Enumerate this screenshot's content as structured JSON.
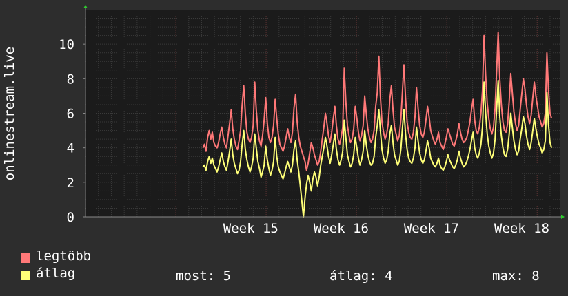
{
  "chart_data": {
    "type": "line",
    "ylabel": "onlinestream.live",
    "ylim": [
      0,
      12
    ],
    "y_ticks": [
      "0",
      "2",
      "4",
      "6",
      "8",
      "10"
    ],
    "x_range_weeks": [
      13.0,
      18.25
    ],
    "x_ticks": [
      {
        "label": "Week 15",
        "week": 14.83
      },
      {
        "label": "Week 16",
        "week": 15.83
      },
      {
        "label": "Week 17",
        "week": 16.83
      },
      {
        "label": "Week 18",
        "week": 17.83
      }
    ],
    "grid": true,
    "series": [
      {
        "name": "legtöbb",
        "color": "#ff7878",
        "x_start_week": 14.3,
        "x_end_week": 18.16,
        "values": [
          4.0,
          4.2,
          3.8,
          4.6,
          5.0,
          4.5,
          4.9,
          4.3,
          4.1,
          4.0,
          4.3,
          4.8,
          5.2,
          4.6,
          4.2,
          4.0,
          4.7,
          5.4,
          6.2,
          5.1,
          4.5,
          4.1,
          3.9,
          4.4,
          5.0,
          6.5,
          7.6,
          6.0,
          4.9,
          4.5,
          4.3,
          4.6,
          5.3,
          7.8,
          6.2,
          5.0,
          4.4,
          4.1,
          4.7,
          5.6,
          6.9,
          5.4,
          4.6,
          4.3,
          4.6,
          5.3,
          6.8,
          5.7,
          4.8,
          4.2,
          4.0,
          3.8,
          4.1,
          4.6,
          5.1,
          4.6,
          4.3,
          4.9,
          6.3,
          7.1,
          5.5,
          4.6,
          4.1,
          3.8,
          3.5,
          3.2,
          2.7,
          3.1,
          3.7,
          4.3,
          4.0,
          3.6,
          3.3,
          3.0,
          3.2,
          3.8,
          4.5,
          5.2,
          6.0,
          5.4,
          4.7,
          4.3,
          4.9,
          5.7,
          6.4,
          5.3,
          4.5,
          4.2,
          4.6,
          5.2,
          8.6,
          6.7,
          5.3,
          4.7,
          4.3,
          4.5,
          5.1,
          6.4,
          5.7,
          4.9,
          4.4,
          4.7,
          5.3,
          7.0,
          6.0,
          5.1,
          4.6,
          4.3,
          4.5,
          5.0,
          6.4,
          7.2,
          9.3,
          7.0,
          5.5,
          4.9,
          4.5,
          4.8,
          5.4,
          6.8,
          7.6,
          6.2,
          5.2,
          4.8,
          4.4,
          4.7,
          5.6,
          7.2,
          8.8,
          6.9,
          5.5,
          4.9,
          4.6,
          4.5,
          4.9,
          5.8,
          7.5,
          6.3,
          5.3,
          4.8,
          4.6,
          4.9,
          5.6,
          6.4,
          5.8,
          5.0,
          4.7,
          4.4,
          4.2,
          4.5,
          4.9,
          4.3,
          4.1,
          3.9,
          4.2,
          4.6,
          5.1,
          4.8,
          4.5,
          4.2,
          4.1,
          4.4,
          4.8,
          5.4,
          4.9,
          4.5,
          4.3,
          4.4,
          4.6,
          5.0,
          5.5,
          6.2,
          6.8,
          5.6,
          5.0,
          4.8,
          5.2,
          6.0,
          7.3,
          10.5,
          8.2,
          6.6,
          5.7,
          5.1,
          4.8,
          5.2,
          6.3,
          8.5,
          10.7,
          8.0,
          6.5,
          5.5,
          5.0,
          4.9,
          5.4,
          6.7,
          8.3,
          7.2,
          6.1,
          5.4,
          5.0,
          5.3,
          6.2,
          7.1,
          8.0,
          7.4,
          6.5,
          5.8,
          5.4,
          5.9,
          6.9,
          7.8,
          7.0,
          6.4,
          5.8,
          5.5,
          5.2,
          5.4,
          6.0,
          9.5,
          7.4,
          6.0,
          5.7
        ]
      },
      {
        "name": "átlag",
        "color": "#ffff78",
        "x_start_week": 14.3,
        "x_end_week": 18.16,
        "values": [
          2.9,
          3.0,
          2.7,
          3.2,
          3.5,
          3.1,
          3.4,
          3.0,
          2.8,
          2.6,
          2.9,
          3.3,
          3.7,
          3.2,
          2.9,
          2.7,
          3.2,
          3.8,
          4.5,
          3.6,
          3.1,
          2.8,
          2.5,
          2.7,
          3.2,
          4.2,
          5.0,
          3.9,
          3.3,
          2.9,
          2.6,
          2.9,
          3.4,
          4.8,
          4.0,
          3.2,
          2.8,
          2.3,
          2.6,
          3.0,
          4.1,
          3.3,
          2.8,
          2.4,
          2.7,
          3.2,
          4.6,
          3.5,
          2.9,
          2.6,
          2.4,
          2.2,
          2.5,
          2.9,
          3.2,
          2.9,
          2.6,
          3.0,
          3.9,
          4.4,
          3.3,
          2.6,
          1.8,
          0.9,
          0.0,
          1.1,
          1.9,
          2.4,
          2.0,
          1.5,
          2.2,
          2.6,
          2.3,
          1.8,
          2.3,
          3.0,
          3.5,
          4.0,
          4.6,
          4.1,
          3.5,
          3.1,
          3.6,
          4.2,
          4.8,
          3.9,
          3.3,
          3.0,
          3.3,
          3.8,
          5.6,
          4.6,
          3.6,
          3.2,
          2.9,
          3.1,
          3.6,
          4.6,
          4.0,
          3.4,
          3.0,
          3.3,
          3.8,
          5.0,
          4.2,
          3.6,
          3.2,
          3.0,
          3.1,
          3.5,
          4.6,
          5.3,
          6.2,
          5.0,
          3.9,
          3.4,
          3.1,
          3.3,
          3.8,
          4.8,
          5.3,
          4.3,
          3.6,
          3.3,
          3.0,
          3.2,
          3.9,
          5.1,
          6.2,
          4.8,
          3.9,
          3.4,
          3.2,
          3.1,
          3.4,
          4.0,
          5.2,
          4.4,
          3.7,
          3.3,
          3.1,
          3.3,
          3.8,
          4.4,
          4.0,
          3.4,
          3.2,
          3.0,
          2.9,
          3.1,
          3.4,
          3.0,
          2.8,
          2.7,
          2.9,
          3.2,
          3.6,
          3.3,
          3.1,
          2.9,
          2.8,
          3.0,
          3.3,
          3.8,
          3.4,
          3.1,
          2.9,
          3.0,
          3.2,
          3.5,
          3.9,
          4.4,
          4.9,
          4.0,
          3.6,
          3.4,
          3.7,
          4.2,
          5.2,
          7.8,
          6.0,
          4.8,
          4.1,
          3.7,
          3.4,
          3.7,
          4.5,
          6.3,
          7.9,
          5.8,
          4.7,
          4.0,
          3.6,
          3.5,
          3.9,
          4.8,
          6.0,
          5.2,
          4.4,
          3.9,
          3.6,
          3.8,
          4.5,
          5.1,
          5.8,
          5.4,
          4.7,
          4.2,
          3.9,
          4.3,
          5.0,
          5.7,
          5.1,
          4.6,
          4.2,
          4.0,
          3.7,
          3.9,
          4.4,
          7.2,
          5.4,
          4.3,
          4.0
        ]
      }
    ]
  },
  "legend": {
    "items": [
      {
        "label": "legtöbb",
        "color": "#ff7878"
      },
      {
        "label": "átlag",
        "color": "#ffff78"
      }
    ]
  },
  "stats": {
    "most": "most: 5",
    "atlag": "átlag: 4",
    "max": "max: 8"
  },
  "colors": {
    "background": "#2d2d2d",
    "plot_background": "#1b1b1b",
    "grid_minor": "#3a3a3a",
    "grid_major": "#5a2f2f",
    "axis": "#8a8a8a",
    "arrow": "#2ecc2e",
    "text": "#ffffff"
  }
}
